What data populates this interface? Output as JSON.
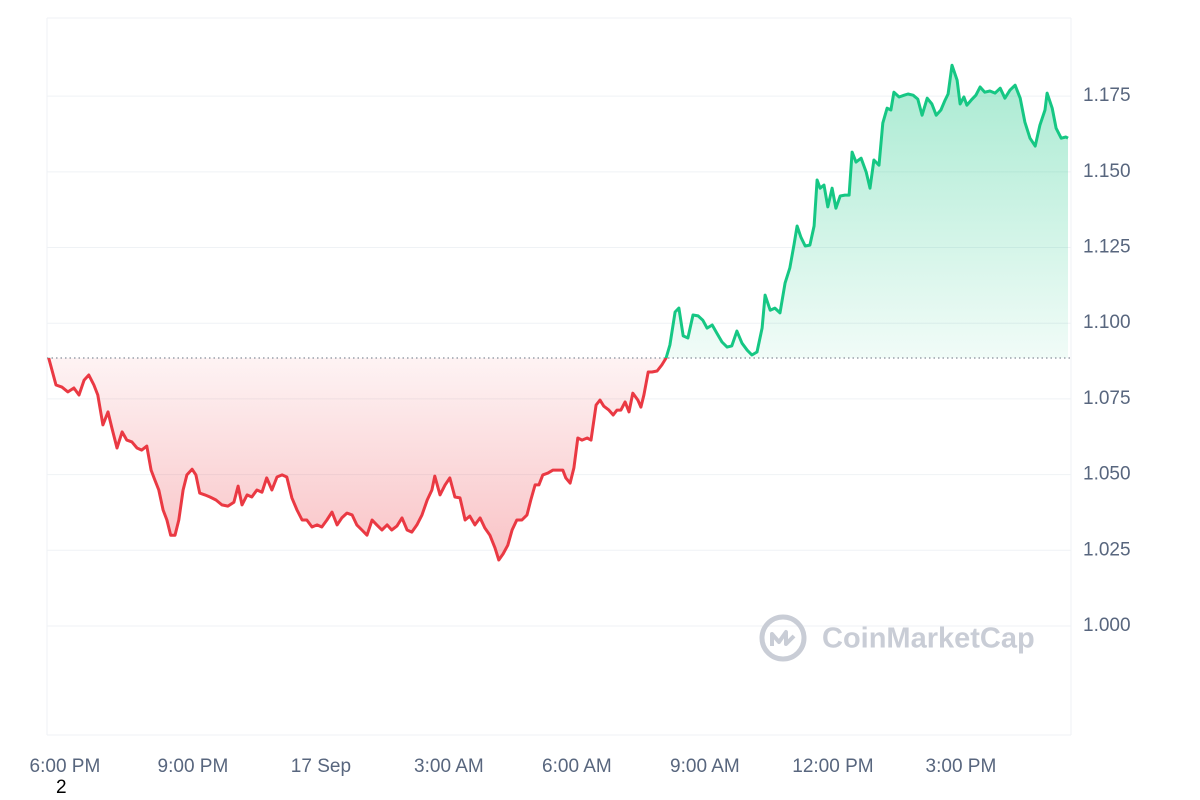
{
  "chart_data": {
    "type": "line",
    "x": [
      -0.38,
      -0.21,
      -0.07,
      0.07,
      0.21,
      0.33,
      0.45,
      0.56,
      0.68,
      0.77,
      0.89,
      1.01,
      1.1,
      1.22,
      1.34,
      1.45,
      1.57,
      1.69,
      1.8,
      1.92,
      2.02,
      2.11,
      2.2,
      2.3,
      2.39,
      2.48,
      2.58,
      2.67,
      2.77,
      2.86,
      2.98,
      3.07,
      3.16,
      3.28,
      3.4,
      3.54,
      3.68,
      3.82,
      3.96,
      4.06,
      4.15,
      4.27,
      4.38,
      4.5,
      4.62,
      4.73,
      4.85,
      4.97,
      5.09,
      5.2,
      5.32,
      5.44,
      5.56,
      5.67,
      5.79,
      5.91,
      6.02,
      6.14,
      6.26,
      6.38,
      6.49,
      6.61,
      6.73,
      6.84,
      6.96,
      7.08,
      7.2,
      7.31,
      7.43,
      7.55,
      7.66,
      7.78,
      7.9,
      8.02,
      8.13,
      8.25,
      8.37,
      8.49,
      8.6,
      8.67,
      8.79,
      8.91,
      9.02,
      9.14,
      9.26,
      9.38,
      9.49,
      9.61,
      9.73,
      9.84,
      9.96,
      10.08,
      10.17,
      10.27,
      10.38,
      10.48,
      10.59,
      10.71,
      10.83,
      10.92,
      11.02,
      11.11,
      11.2,
      11.32,
      11.44,
      11.56,
      11.67,
      11.74,
      11.84,
      11.93,
      12.02,
      12.12,
      12.24,
      12.33,
      12.45,
      12.54,
      12.63,
      12.75,
      12.85,
      12.94,
      13.03,
      13.13,
      13.22,
      13.31,
      13.43,
      13.5,
      13.57,
      13.67,
      13.76,
      13.88,
      13.99,
      14.09,
      14.18,
      14.3,
      14.39,
      14.49,
      14.6,
      14.72,
      14.84,
      14.95,
      15.05,
      15.17,
      15.28,
      15.4,
      15.52,
      15.63,
      15.75,
      15.87,
      15.99,
      16.1,
      16.22,
      16.34,
      16.41,
      16.53,
      16.64,
      16.76,
      16.88,
      16.99,
      17.09,
      17.16,
      17.25,
      17.35,
      17.46,
      17.56,
      17.63,
      17.7,
      17.79,
      17.88,
      17.98,
      18.07,
      18.17,
      18.28,
      18.38,
      18.45,
      18.54,
      18.66,
      18.78,
      18.87,
      18.96,
      19.08,
      19.17,
      19.27,
      19.36,
      19.43,
      19.55,
      19.67,
      19.76,
      19.88,
      19.99,
      20.09,
      20.21,
      20.32,
      20.42,
      20.53,
      20.63,
      20.7,
      20.79,
      20.91,
      20.98,
      21.07,
      21.14,
      21.24,
      21.35,
      21.45,
      21.56,
      21.68,
      21.8,
      21.92,
      22.03,
      22.15,
      22.27,
      22.39,
      22.5,
      22.62,
      22.74,
      22.85,
      22.97,
      23.02,
      23.14,
      23.23,
      23.35,
      23.46,
      23.51
    ],
    "values": [
      1.0885,
      1.0796,
      1.0789,
      1.0773,
      1.0786,
      1.0763,
      1.0812,
      1.0829,
      1.0796,
      1.0763,
      1.0664,
      1.0707,
      1.0654,
      1.0588,
      1.0641,
      1.0614,
      1.0608,
      1.0588,
      1.0581,
      1.0594,
      1.0515,
      1.0482,
      1.0449,
      1.0383,
      1.035,
      1.03,
      1.03,
      1.035,
      1.0449,
      1.0499,
      1.0518,
      1.0499,
      1.0439,
      1.0433,
      1.0426,
      1.0416,
      1.04,
      1.0396,
      1.0409,
      1.0462,
      1.04,
      1.0433,
      1.0426,
      1.0449,
      1.0442,
      1.0489,
      1.0449,
      1.0492,
      1.0499,
      1.0492,
      1.0423,
      1.0383,
      1.035,
      1.035,
      1.0327,
      1.0334,
      1.0327,
      1.035,
      1.0376,
      1.0334,
      1.0357,
      1.0373,
      1.0367,
      1.0334,
      1.0317,
      1.03,
      1.035,
      1.0334,
      1.0317,
      1.0334,
      1.0317,
      1.033,
      1.0357,
      1.0317,
      1.031,
      1.0334,
      1.0367,
      1.0416,
      1.0449,
      1.0495,
      1.0433,
      1.0466,
      1.0489,
      1.0426,
      1.0423,
      1.035,
      1.0363,
      1.0334,
      1.0357,
      1.0324,
      1.03,
      1.0258,
      1.0218,
      1.0238,
      1.0267,
      1.0317,
      1.035,
      1.035,
      1.0367,
      1.0416,
      1.0466,
      1.0466,
      1.0499,
      1.0505,
      1.0515,
      1.0515,
      1.0515,
      1.0489,
      1.0472,
      1.0522,
      1.0621,
      1.0614,
      1.0621,
      1.0614,
      1.073,
      1.0746,
      1.0726,
      1.0713,
      1.0697,
      1.0713,
      1.0713,
      1.074,
      1.0707,
      1.0769,
      1.0746,
      1.0723,
      1.0763,
      1.0839,
      1.0839,
      1.0842,
      1.0862,
      1.0885,
      1.0928,
      1.1037,
      1.105,
      1.0958,
      1.0951,
      1.1027,
      1.1024,
      1.101,
      1.0984,
      1.0994,
      1.0967,
      1.0938,
      1.0921,
      1.0925,
      1.0974,
      1.0934,
      1.0911,
      1.0895,
      1.0905,
      1.0984,
      1.1093,
      1.1043,
      1.105,
      1.1034,
      1.1133,
      1.1182,
      1.1261,
      1.1321,
      1.1284,
      1.1255,
      1.1258,
      1.1321,
      1.1473,
      1.1446,
      1.1456,
      1.1384,
      1.1446,
      1.138,
      1.142,
      1.1423,
      1.1423,
      1.1565,
      1.1532,
      1.1545,
      1.1499,
      1.1446,
      1.1539,
      1.1522,
      1.1661,
      1.171,
      1.1704,
      1.1763,
      1.1747,
      1.1753,
      1.1757,
      1.1753,
      1.174,
      1.1687,
      1.1743,
      1.1724,
      1.1687,
      1.1704,
      1.1737,
      1.1757,
      1.1852,
      1.1803,
      1.1724,
      1.1747,
      1.172,
      1.1737,
      1.1753,
      1.178,
      1.1763,
      1.1767,
      1.176,
      1.1776,
      1.1743,
      1.177,
      1.1786,
      1.1743,
      1.1664,
      1.1611,
      1.1585,
      1.1654,
      1.1704,
      1.176,
      1.171,
      1.1644,
      1.1611,
      1.1615,
      1.1611
    ],
    "baseline": 1.0885,
    "up_color": "#16c784",
    "down_color": "#ea3943",
    "xlim": [
      -0.42,
      23.58
    ],
    "xticks": [
      {
        "value": 0,
        "label": "6:00 PM"
      },
      {
        "value": 3,
        "label": "9:00 PM"
      },
      {
        "value": 6,
        "label": "17 Sep"
      },
      {
        "value": 9,
        "label": "3:00 AM"
      },
      {
        "value": 12,
        "label": "6:00 AM"
      },
      {
        "value": 15,
        "label": "9:00 AM"
      },
      {
        "value": 18,
        "label": "12:00 PM"
      },
      {
        "value": 21,
        "label": "3:00 PM"
      }
    ],
    "ylim": [
      0.964,
      1.2008
    ],
    "yticks": [
      {
        "value": 1.0,
        "label": "1.000"
      },
      1.025,
      {
        "value": 1.05,
        "label": "1.050"
      },
      1.075,
      {
        "value": 1.1,
        "label": "1.100"
      },
      1.125,
      {
        "value": 1.15,
        "label": "1.150"
      },
      1.175
    ],
    "grid": true,
    "watermark": "CoinMarketCap",
    "footnote": "2"
  }
}
